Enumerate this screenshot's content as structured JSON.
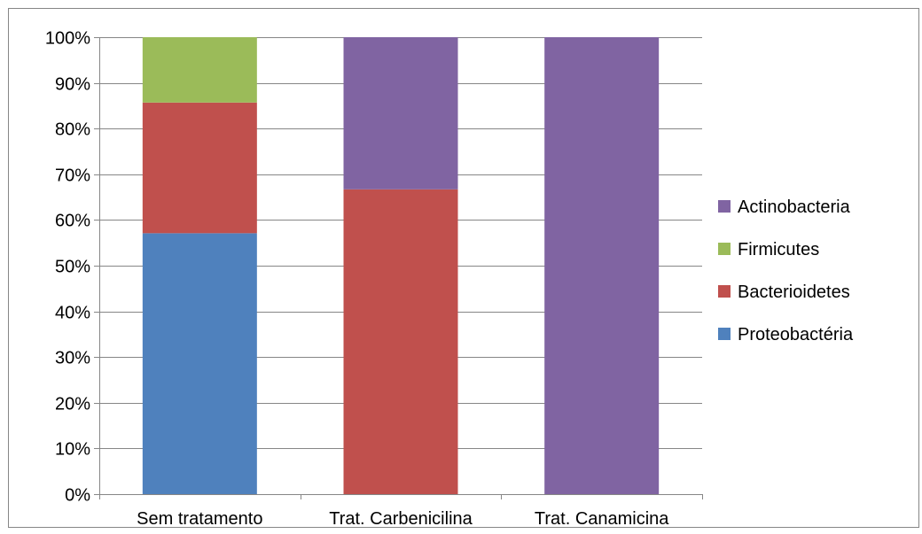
{
  "chart_data": {
    "type": "bar",
    "stacked": true,
    "normalized_percent": true,
    "categories": [
      "Sem tratamento",
      "Trat. Carbenicilina",
      "Trat. Canamicina"
    ],
    "series": [
      {
        "name": "Proteobactéria",
        "color": "#4F81BD",
        "values": [
          57.1,
          0,
          0
        ]
      },
      {
        "name": "Bacterioidetes",
        "color": "#C0504D",
        "values": [
          28.6,
          66.7,
          0
        ]
      },
      {
        "name": "Firmicutes",
        "color": "#9BBB59",
        "values": [
          14.3,
          0,
          0
        ]
      },
      {
        "name": "Actinobacteria",
        "color": "#8064A2",
        "values": [
          0,
          33.3,
          100
        ]
      }
    ],
    "legend_order": [
      "Actinobacteria",
      "Firmicutes",
      "Bacterioidetes",
      "Proteobactéria"
    ],
    "y_ticks": [
      "0%",
      "10%",
      "20%",
      "30%",
      "40%",
      "50%",
      "60%",
      "70%",
      "80%",
      "90%",
      "100%"
    ],
    "ylim": [
      0,
      100
    ],
    "grid": true,
    "legend_position": "right"
  }
}
